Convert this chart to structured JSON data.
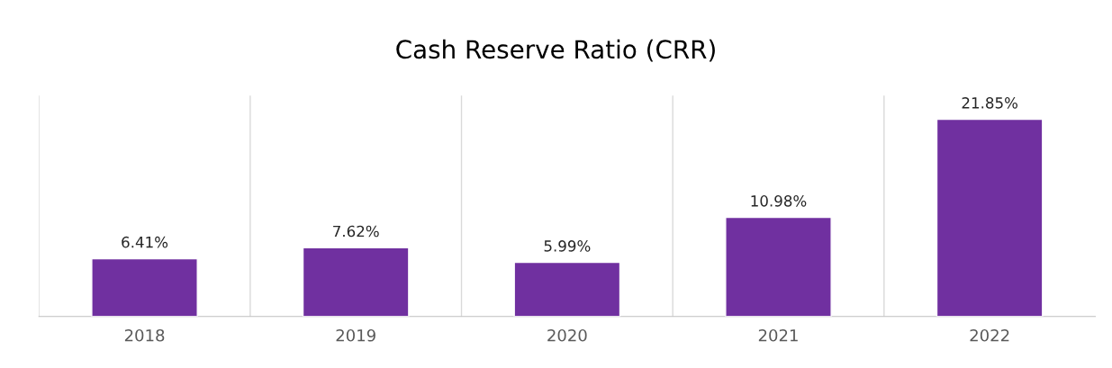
{
  "chart_data": {
    "type": "bar",
    "title": "Cash Reserve Ratio (CRR)",
    "categories": [
      "2018",
      "2019",
      "2020",
      "2021",
      "2022"
    ],
    "values": [
      6.41,
      7.62,
      5.99,
      10.98,
      21.85
    ],
    "color": "#7030a0",
    "value_labels": [
      "6.41%",
      "7.62%",
      "5.99%",
      "10.98%",
      "21.85%"
    ],
    "tick_labels": "x",
    "grid": "x",
    "legend": false
  }
}
